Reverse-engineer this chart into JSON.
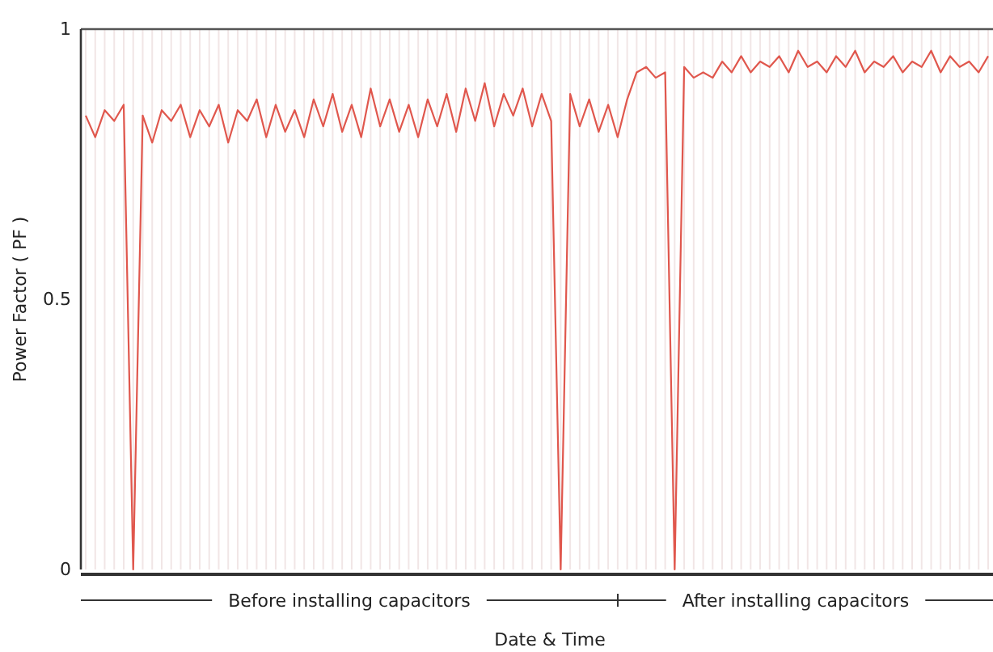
{
  "chart_data": {
    "type": "line",
    "xlabel": "Date & Time",
    "ylabel": "Power Factor ( PF )",
    "categories": [
      null,
      null,
      null,
      null,
      null,
      null,
      null,
      null,
      null,
      null,
      null,
      null,
      null,
      null,
      null,
      null,
      null,
      null,
      null,
      null,
      null,
      null,
      null,
      null,
      null,
      null,
      null,
      null,
      null,
      null,
      null,
      null,
      null,
      null,
      null,
      null,
      null,
      null,
      null,
      null,
      null,
      null,
      null,
      null,
      null,
      null,
      null,
      null,
      null,
      null,
      null,
      null,
      null,
      null,
      null,
      null,
      null,
      null,
      null,
      null,
      null,
      null,
      null,
      null,
      null,
      null,
      null,
      null,
      null,
      null,
      null,
      null,
      null,
      null,
      null,
      null,
      null,
      null,
      null,
      null,
      null,
      null,
      null,
      null,
      null,
      null,
      null,
      null,
      null,
      null,
      null,
      null,
      null,
      null,
      null,
      null
    ],
    "series": [
      {
        "color": "#e0574d",
        "values": [
          0.84,
          0.8,
          0.85,
          0.83,
          0.86,
          0,
          0.84,
          0.79,
          0.85,
          0.83,
          0.86,
          0.8,
          0.85,
          0.82,
          0.86,
          0.79,
          0.85,
          0.83,
          0.87,
          0.8,
          0.86,
          0.81,
          0.85,
          0.8,
          0.87,
          0.82,
          0.88,
          0.81,
          0.86,
          0.8,
          0.89,
          0.82,
          0.87,
          0.81,
          0.86,
          0.8,
          0.87,
          0.82,
          0.88,
          0.81,
          0.89,
          0.83,
          0.9,
          0.82,
          0.88,
          0.84,
          0.89,
          0.82,
          0.88,
          0.83,
          0,
          0.88,
          0.82,
          0.87,
          0.81,
          0.86,
          0.8,
          0.87,
          0.92,
          0.93,
          0.91,
          0.92,
          0,
          0.93,
          0.91,
          0.92,
          0.91,
          0.94,
          0.92,
          0.95,
          0.92,
          0.94,
          0.93,
          0.95,
          0.92,
          0.96,
          0.93,
          0.94,
          0.92,
          0.95,
          0.93,
          0.96,
          0.92,
          0.94,
          0.93,
          0.95,
          0.92,
          0.94,
          0.93,
          0.96,
          0.92,
          0.95,
          0.93,
          0.94,
          0.92,
          0.95
        ]
      }
    ],
    "ylim": [
      0,
      1
    ],
    "yticks": [
      0,
      0.5,
      1
    ],
    "grid": "x",
    "marker": "none",
    "line_style": "solid",
    "annotations": [
      "Before installing capacitors",
      "After installing capacitors"
    ]
  }
}
